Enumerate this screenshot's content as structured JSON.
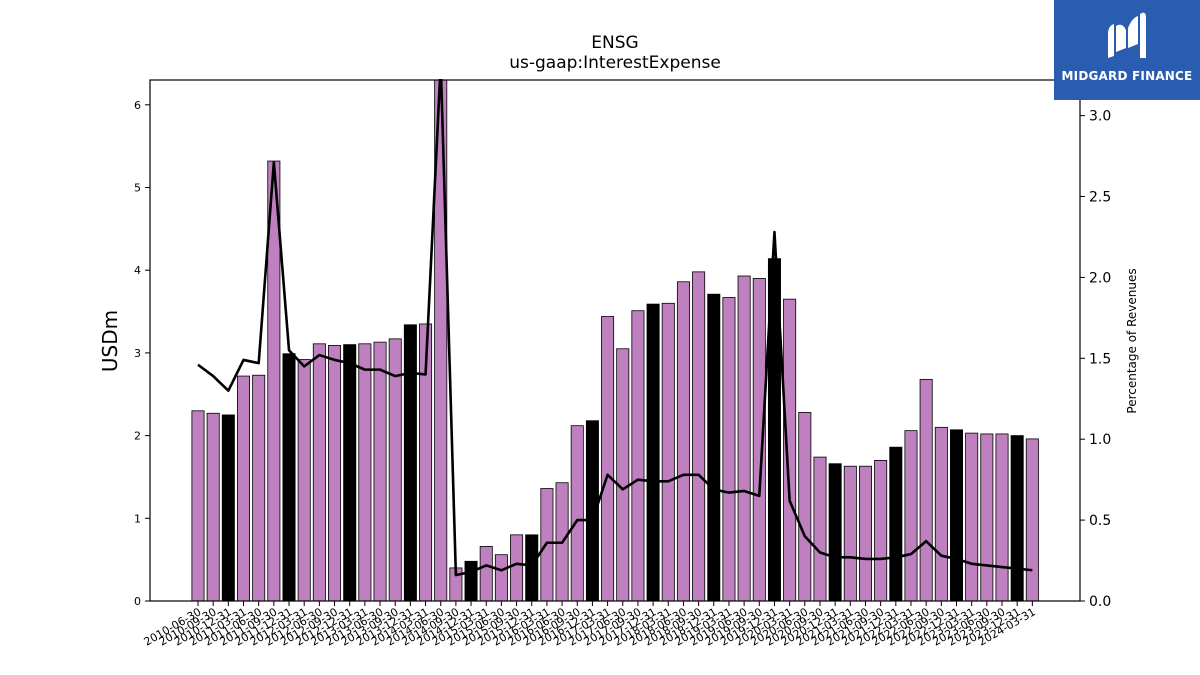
{
  "chart_data": {
    "type": "bar+line",
    "title": "ENSG",
    "subtitle": "us-gaap:InterestExpense",
    "ylabel": "USDm",
    "y2label": "Percentage of Revenues",
    "ylim": [
      0,
      6.3
    ],
    "y2lim": [
      0,
      3.22
    ],
    "yticks": [
      0,
      1,
      2,
      3,
      4,
      5,
      6
    ],
    "y2ticks": [
      "0.0",
      "0.5",
      "1.0",
      "1.5",
      "2.0",
      "2.5",
      "3.0"
    ],
    "categories": [
      "2010-06-30",
      "2010-09-30",
      "2010-12-31",
      "2011-03-31",
      "2011-06-30",
      "2011-09-30",
      "2011-12-31",
      "2012-03-31",
      "2012-06-30",
      "2012-09-30",
      "2012-12-31",
      "2013-03-31",
      "2013-06-30",
      "2013-09-30",
      "2013-12-31",
      "2014-03-31",
      "2014-06-30",
      "2014-09-30",
      "2014-12-31",
      "2015-03-31",
      "2015-06-30",
      "2015-09-30",
      "2015-12-31",
      "2016-03-31",
      "2016-06-30",
      "2016-09-30",
      "2016-12-31",
      "2017-03-31",
      "2017-06-30",
      "2017-09-30",
      "2017-12-31",
      "2018-03-31",
      "2018-06-30",
      "2018-09-30",
      "2018-12-31",
      "2019-03-31",
      "2019-06-30",
      "2019-09-30",
      "2019-12-31",
      "2020-03-31",
      "2020-06-30",
      "2020-09-30",
      "2020-12-31",
      "2021-03-31",
      "2021-06-30",
      "2021-09-30",
      "2021-12-31",
      "2022-03-31",
      "2022-06-30",
      "2022-09-30",
      "2022-12-31",
      "2023-03-31",
      "2023-06-30",
      "2023-09-30",
      "2023-12-31",
      "2024-03-31"
    ],
    "series": [
      {
        "type": "bar",
        "values": [
          2.3,
          2.27,
          2.25,
          2.72,
          2.73,
          5.32,
          2.99,
          2.92,
          3.11,
          3.09,
          3.1,
          3.11,
          3.13,
          3.17,
          3.34,
          3.35,
          6.35,
          0.4,
          0.48,
          0.66,
          0.56,
          0.8,
          0.8,
          1.36,
          1.43,
          2.12,
          2.18,
          3.44,
          3.05,
          3.51,
          3.59,
          3.6,
          3.86,
          3.98,
          3.71,
          3.67,
          3.93,
          3.9,
          4.14,
          3.65,
          2.28,
          1.74,
          1.66,
          1.63,
          1.63,
          1.7,
          1.86,
          2.06,
          2.68,
          2.1,
          2.07,
          2.03,
          2.02,
          2.02,
          2.0,
          1.96
        ],
        "highlight": [
          false,
          false,
          true,
          false,
          false,
          false,
          true,
          false,
          false,
          false,
          true,
          false,
          false,
          false,
          true,
          false,
          false,
          false,
          true,
          false,
          false,
          false,
          true,
          false,
          false,
          false,
          true,
          false,
          false,
          false,
          true,
          false,
          false,
          false,
          true,
          false,
          false,
          false,
          true,
          false,
          false,
          false,
          true,
          false,
          false,
          false,
          true,
          false,
          false,
          false,
          true,
          false,
          false,
          false,
          true,
          false
        ],
        "color": "#bf80bf",
        "highlight_color": "#000000"
      },
      {
        "type": "line",
        "axis": "right",
        "values": [
          1.46,
          1.39,
          1.3,
          1.49,
          1.47,
          2.71,
          1.55,
          1.45,
          1.52,
          1.49,
          1.47,
          1.43,
          1.43,
          1.39,
          1.41,
          1.4,
          3.32,
          0.16,
          0.18,
          0.22,
          0.19,
          0.23,
          0.22,
          0.36,
          0.36,
          0.5,
          0.5,
          0.78,
          0.69,
          0.75,
          0.74,
          0.74,
          0.78,
          0.78,
          0.69,
          0.67,
          0.68,
          0.65,
          2.28,
          0.62,
          0.4,
          0.3,
          0.27,
          0.27,
          0.26,
          0.26,
          0.27,
          0.29,
          0.37,
          0.28,
          0.26,
          0.23,
          0.22,
          0.21,
          0.2,
          0.19
        ],
        "color": "#000000"
      }
    ],
    "grid": false
  },
  "logo": {
    "text": "MIDGARD FINANCE",
    "color": "#2a5db0"
  }
}
